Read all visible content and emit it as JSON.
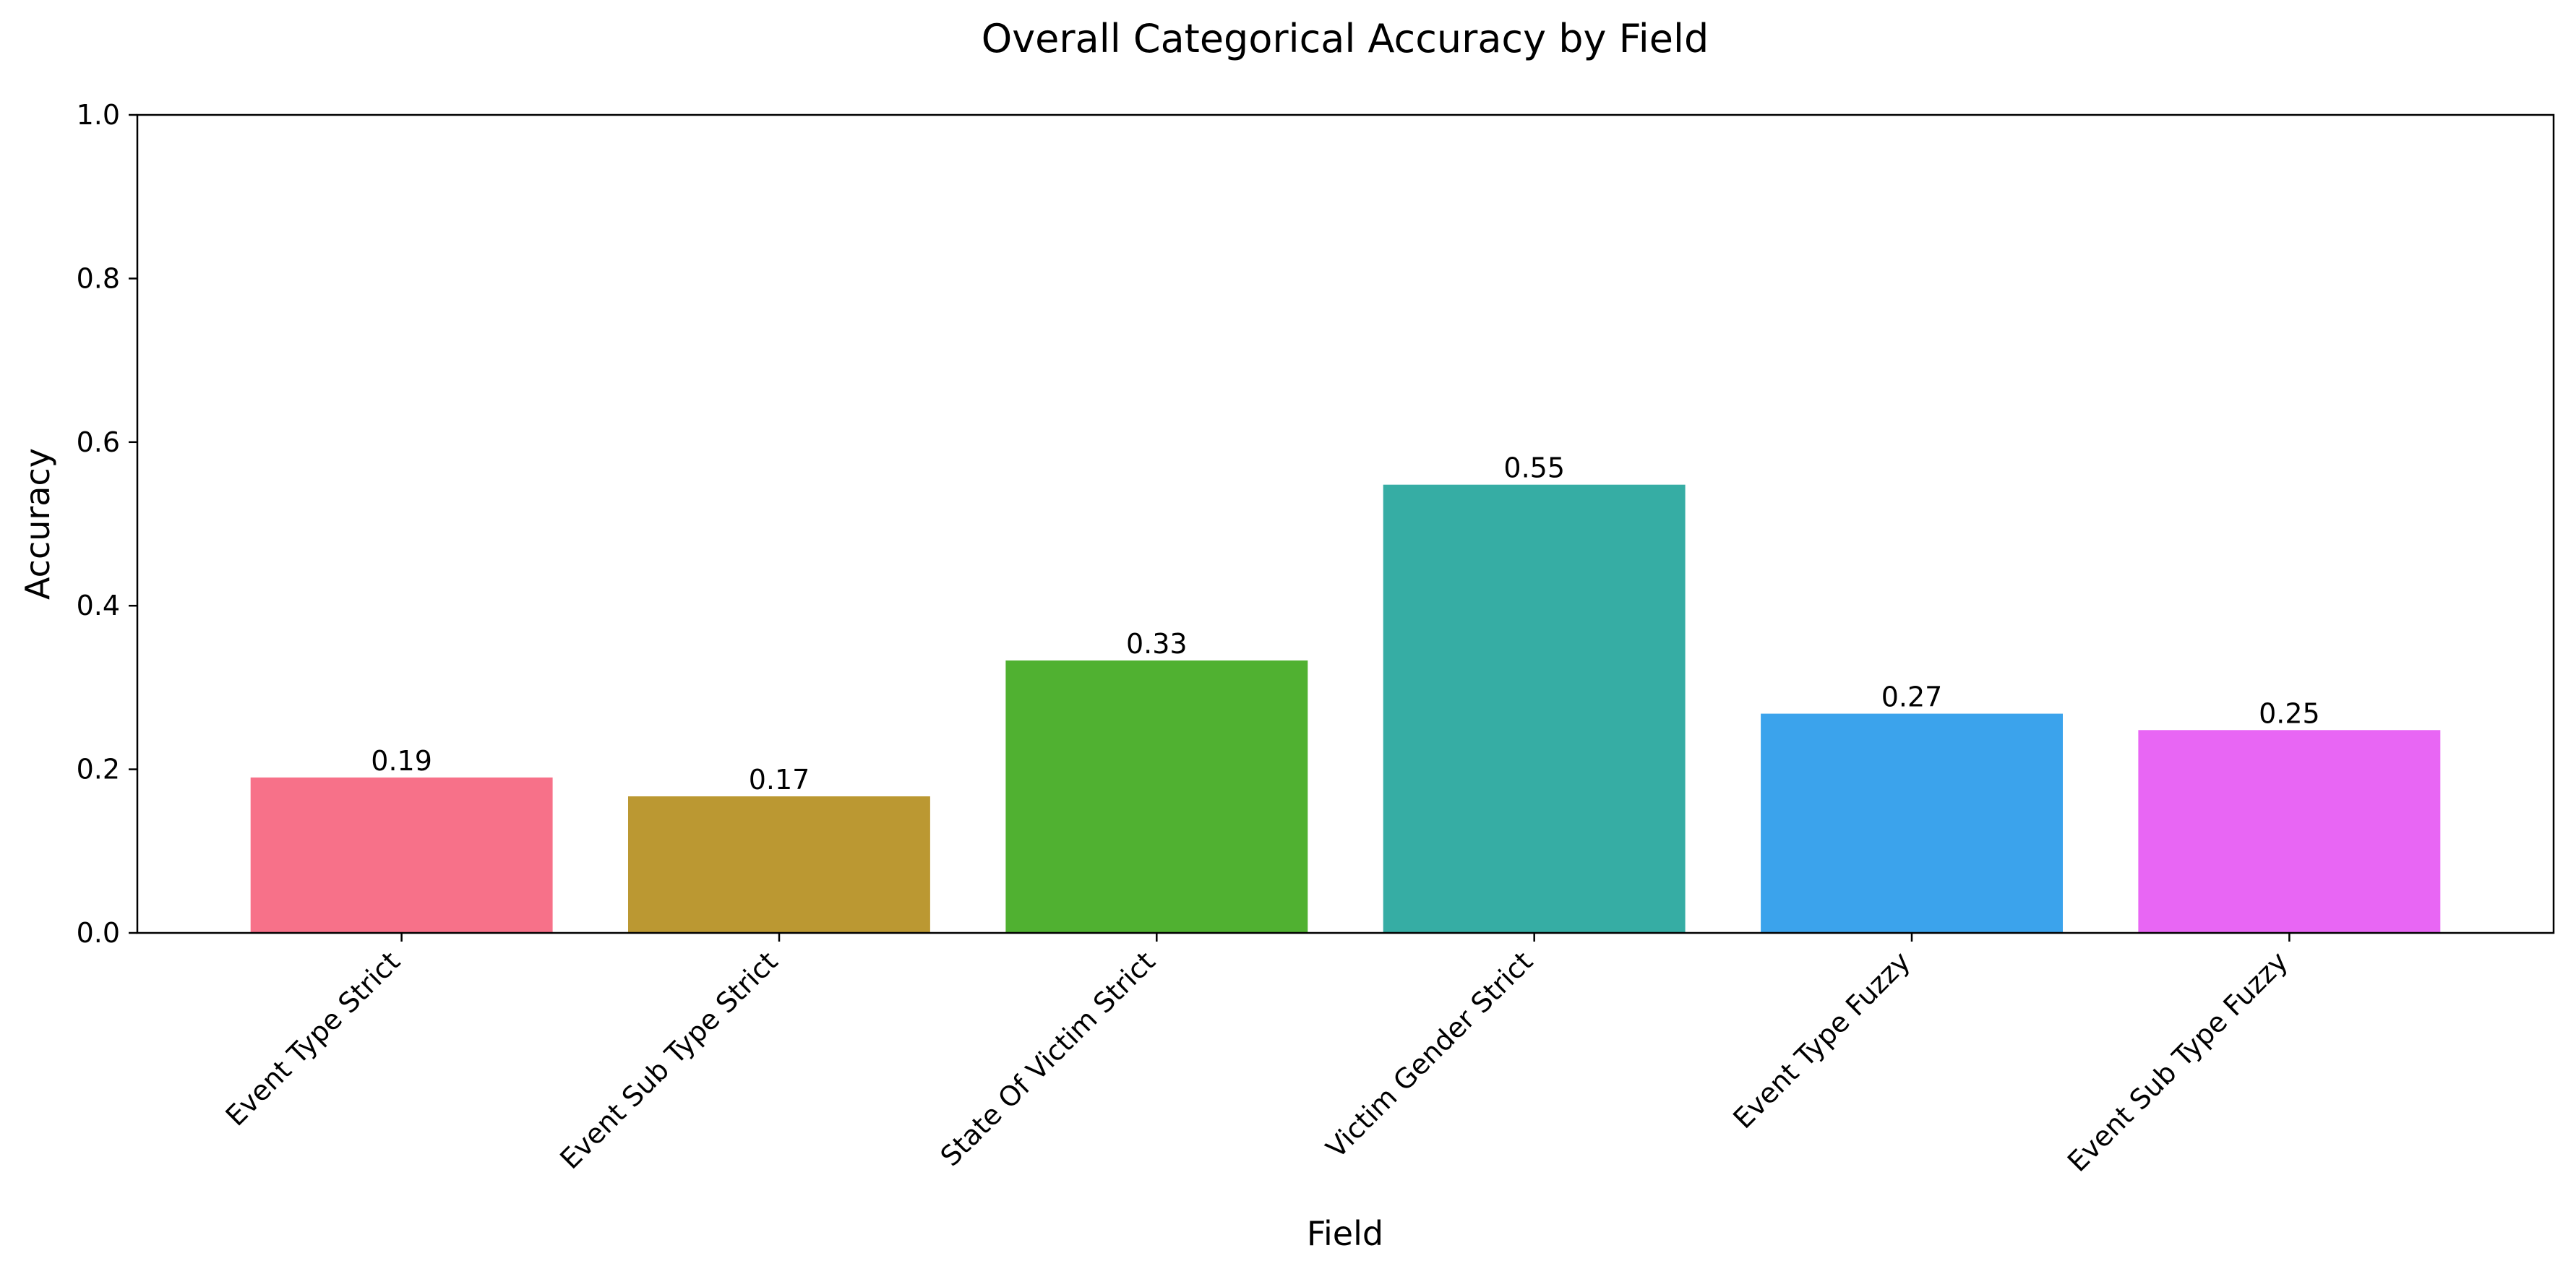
{
  "chart_data": {
    "type": "bar",
    "title": "Overall Categorical Accuracy by Field",
    "xlabel": "Field",
    "ylabel": "Accuracy",
    "ylim": [
      0,
      1.0
    ],
    "yticks": [
      "0.0",
      "0.2",
      "0.4",
      "0.6",
      "0.8",
      "1.0"
    ],
    "grid": false,
    "legend": "none",
    "categories": [
      "Event Type Strict",
      "Event Sub Type Strict",
      "State Of Victim Strict",
      "Victim Gender Strict",
      "Event Type Fuzzy",
      "Event Sub Type Fuzzy"
    ],
    "values": [
      0.19,
      0.167,
      0.333,
      0.548,
      0.268,
      0.248
    ],
    "value_labels": [
      "0.19",
      "0.17",
      "0.33",
      "0.55",
      "0.27",
      "0.25"
    ],
    "colors": [
      "#f77189",
      "#bb9832",
      "#50b131",
      "#36ada4",
      "#3ba3ec",
      "#e866f4"
    ]
  }
}
